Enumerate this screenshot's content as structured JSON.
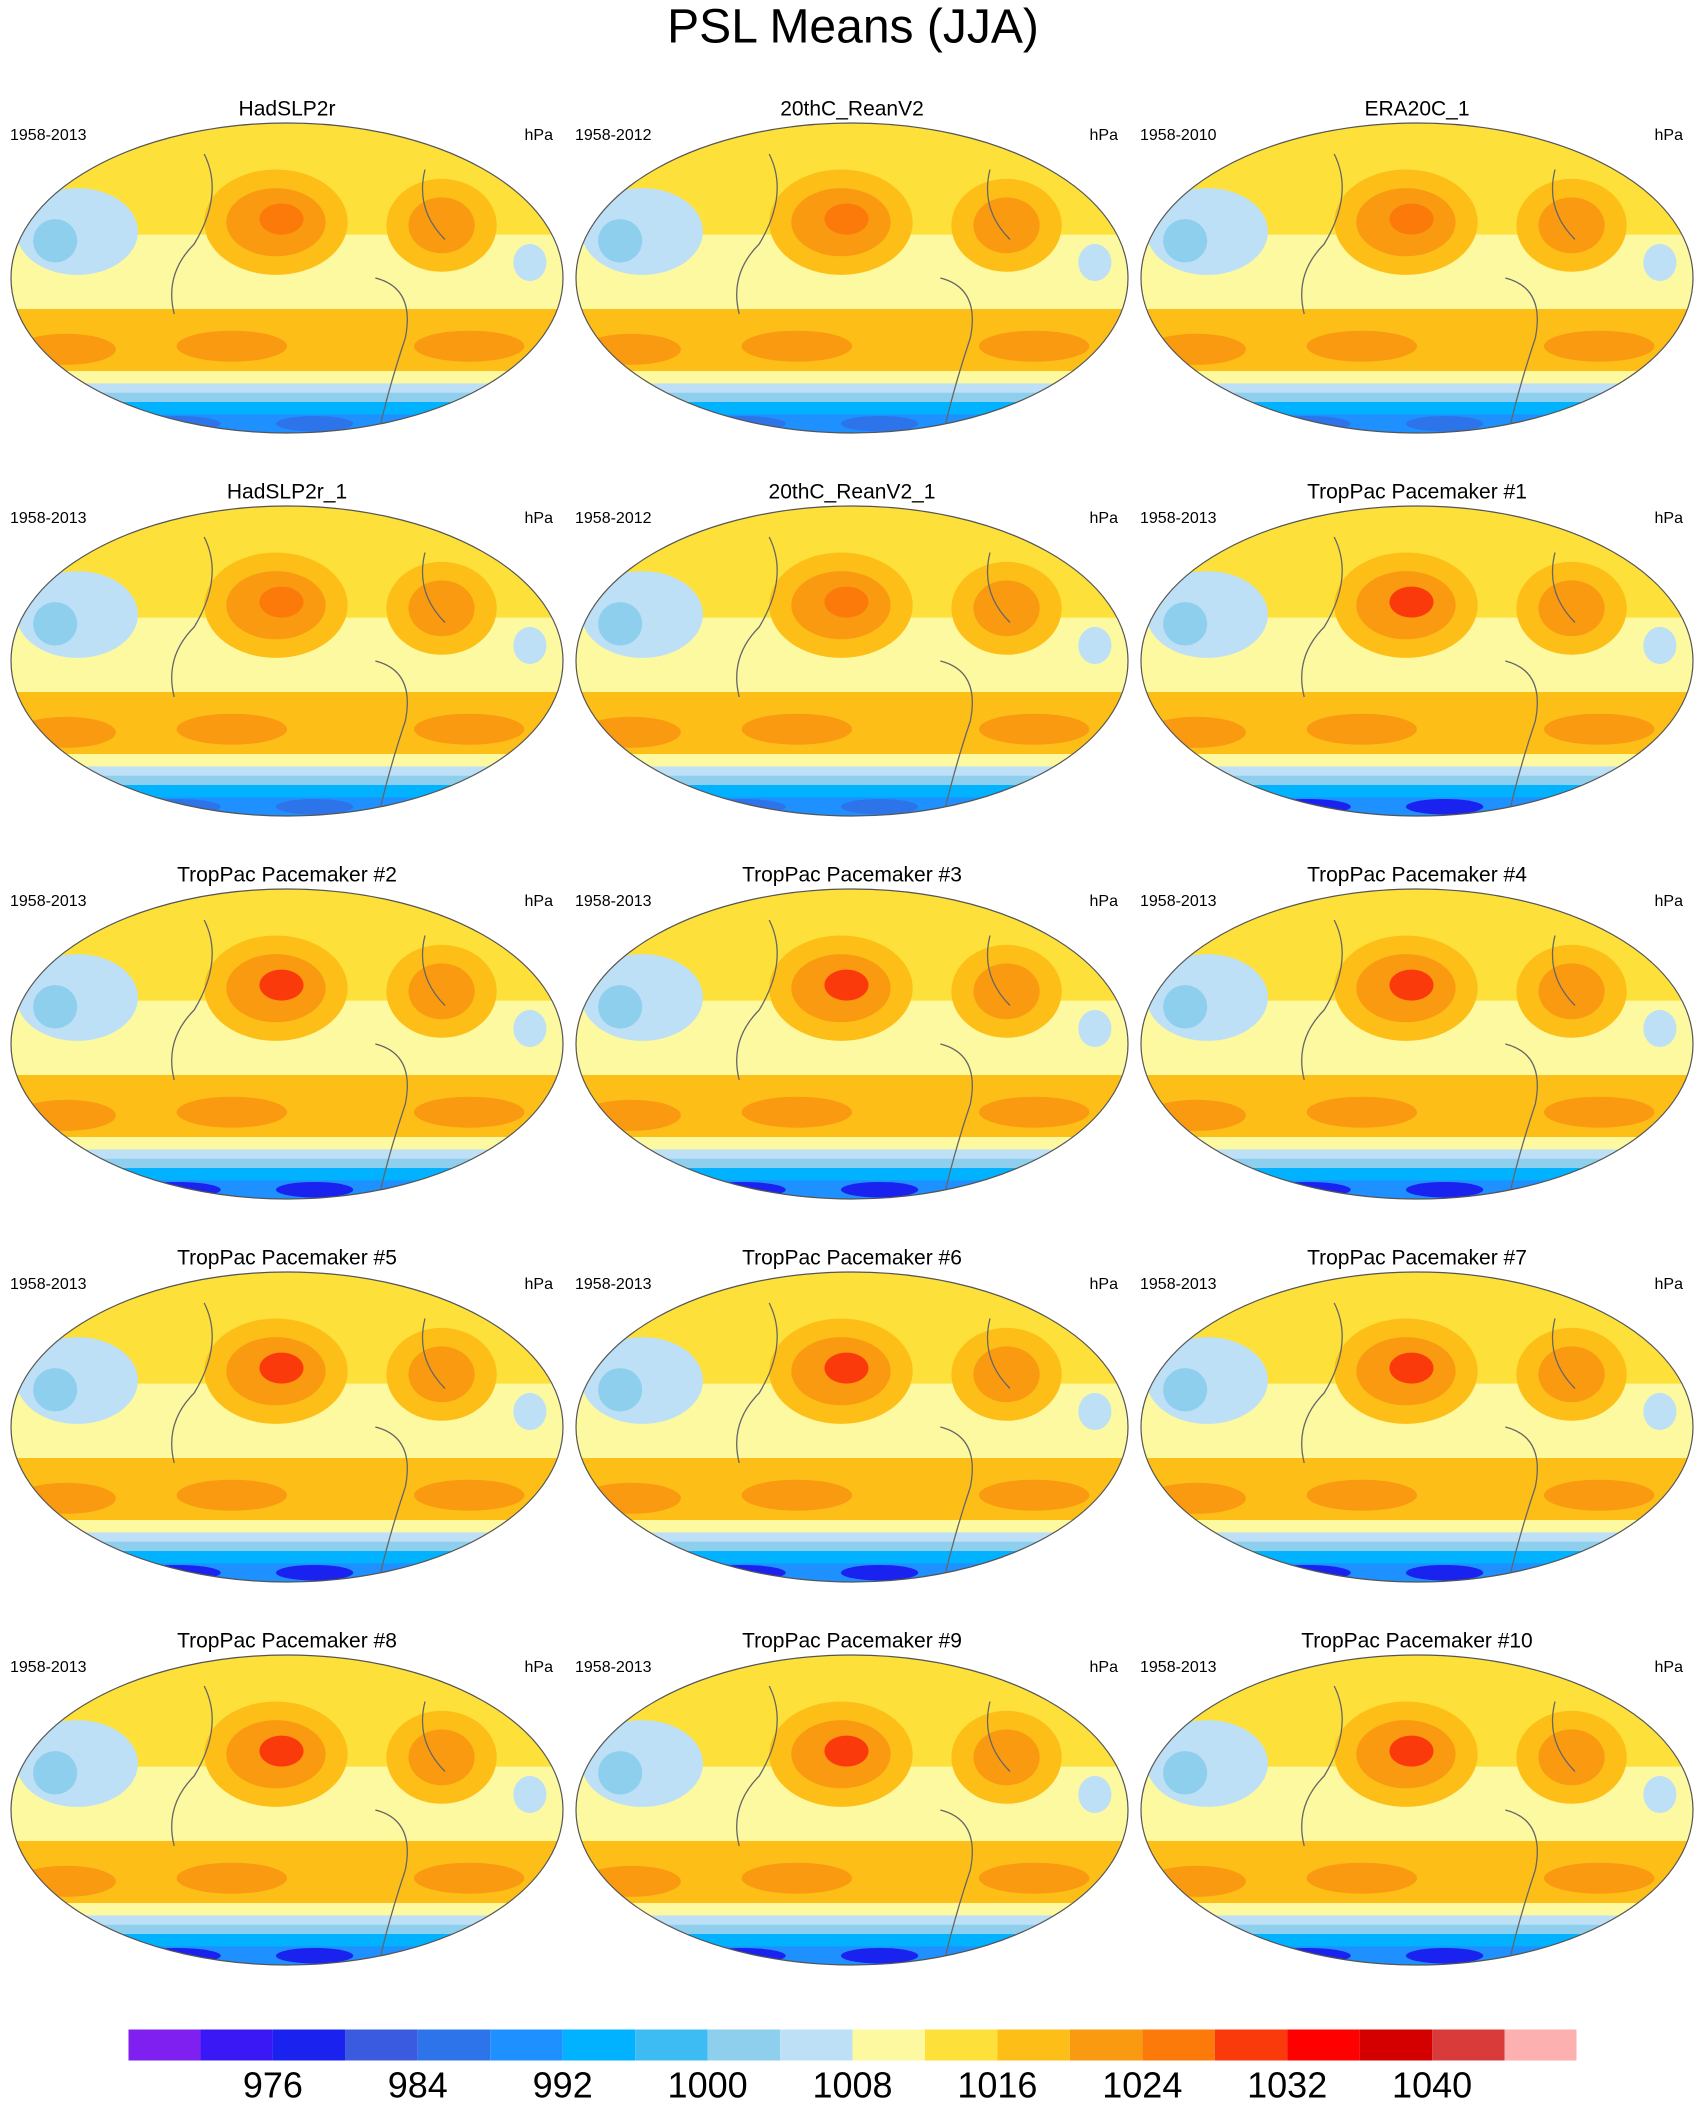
{
  "title": "PSL Means (JJA)",
  "panels": [
    {
      "title": "HadSLP2r",
      "period": "1958-2013",
      "units": "hPa"
    },
    {
      "title": "20thC_ReanV2",
      "period": "1958-2012",
      "units": "hPa"
    },
    {
      "title": "ERA20C_1",
      "period": "1958-2010",
      "units": "hPa"
    },
    {
      "title": "HadSLP2r_1",
      "period": "1958-2013",
      "units": "hPa"
    },
    {
      "title": "20thC_ReanV2_1",
      "period": "1958-2012",
      "units": "hPa"
    },
    {
      "title": "TropPac Pacemaker #1",
      "period": "1958-2013",
      "units": "hPa"
    },
    {
      "title": "TropPac Pacemaker #2",
      "period": "1958-2013",
      "units": "hPa"
    },
    {
      "title": "TropPac Pacemaker #3",
      "period": "1958-2013",
      "units": "hPa"
    },
    {
      "title": "TropPac Pacemaker #4",
      "period": "1958-2013",
      "units": "hPa"
    },
    {
      "title": "TropPac Pacemaker #5",
      "period": "1958-2013",
      "units": "hPa"
    },
    {
      "title": "TropPac Pacemaker #6",
      "period": "1958-2013",
      "units": "hPa"
    },
    {
      "title": "TropPac Pacemaker #7",
      "period": "1958-2013",
      "units": "hPa"
    },
    {
      "title": "TropPac Pacemaker #8",
      "period": "1958-2013",
      "units": "hPa"
    },
    {
      "title": "TropPac Pacemaker #9",
      "period": "1958-2013",
      "units": "hPa"
    },
    {
      "title": "TropPac Pacemaker #10",
      "period": "1958-2013",
      "units": "hPa"
    }
  ],
  "colorbar": {
    "colors": [
      "#7f1ff0",
      "#3a18f5",
      "#1a22f0",
      "#3a5ae0",
      "#2d74ea",
      "#1e90ff",
      "#00b2ff",
      "#3cbcf2",
      "#8fcfee",
      "#bde0f6",
      "#fdf9a0",
      "#fde13a",
      "#fdbf17",
      "#fa9a10",
      "#fb7a0a",
      "#fb3a0b",
      "#fe0000",
      "#d40000",
      "#d93a3a",
      "#fdb0b0"
    ],
    "labels": [
      976,
      984,
      992,
      1000,
      1008,
      1016,
      1024,
      1032,
      1040
    ]
  }
}
